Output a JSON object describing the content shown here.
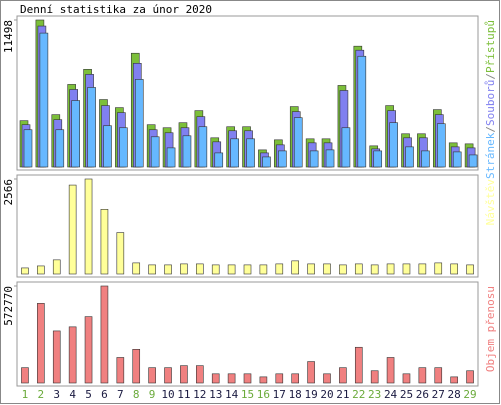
{
  "chart_data": [
    {
      "type": "bar",
      "title": "Denní statistika za únor 2020",
      "legend_separator": "/",
      "ylim": [
        0,
        11498
      ],
      "yticks": [
        11498
      ],
      "series": [
        {
          "name": "Přístupů",
          "color": "#7cbf3a",
          "values": [
            3623,
            11498,
            4095,
            6458,
            7639,
            5276,
            4646,
            8899,
            3308,
            3071,
            3465,
            4410,
            2284,
            3150,
            3150,
            1339,
            2126,
            4725,
            2205,
            2205,
            6379,
            9450,
            1654,
            4804,
            2599,
            2599,
            4489,
            1890,
            1811
          ]
        },
        {
          "name": "Souborů",
          "color": "#8080f0",
          "values": [
            3308,
            11025,
            3701,
            6064,
            7245,
            4804,
            4253,
            8111,
            2914,
            2678,
            3071,
            3938,
            1969,
            2835,
            2835,
            1103,
            1733,
            4331,
            1890,
            1890,
            5985,
            9135,
            1418,
            4410,
            2284,
            2284,
            4095,
            1575,
            1496
          ]
        },
        {
          "name": "Stránek",
          "color": "#66b8ff",
          "values": [
            2914,
            10474,
            2914,
            5198,
            6221,
            3229,
            3071,
            6851,
            2363,
            1496,
            2441,
            3150,
            1103,
            2205,
            2205,
            788,
            1260,
            3859,
            1260,
            1339,
            3071,
            8663,
            1260,
            3465,
            1575,
            1260,
            3386,
            1181,
            945
          ]
        }
      ]
    },
    {
      "type": "bar",
      "ylim": [
        0,
        2566
      ],
      "yticks": [
        2566
      ],
      "series": [
        {
          "name": "Návštěv",
          "color": "#ffff99",
          "values": [
            164,
            218,
            382,
            2402,
            2566,
            1747,
            1119,
            300,
            246,
            246,
            273,
            273,
            246,
            246,
            246,
            246,
            273,
            355,
            273,
            273,
            246,
            273,
            246,
            273,
            273,
            273,
            300,
            273,
            246
          ]
        }
      ]
    },
    {
      "type": "bar",
      "ylim": [
        0,
        572770
      ],
      "yticks": [
        572770
      ],
      "categories": [
        "1",
        "2",
        "3",
        "4",
        "5",
        "6",
        "7",
        "8",
        "9",
        "10",
        "11",
        "12",
        "13",
        "14",
        "15",
        "16",
        "17",
        "18",
        "19",
        "20",
        "21",
        "22",
        "23",
        "24",
        "25",
        "26",
        "27",
        "28",
        "29"
      ],
      "weekend_label_color": "#6aaa3a",
      "label_color": "#1a1a40",
      "weekend": [
        true,
        true,
        false,
        false,
        false,
        false,
        false,
        true,
        true,
        false,
        false,
        false,
        false,
        false,
        true,
        true,
        false,
        false,
        false,
        false,
        false,
        true,
        true,
        false,
        false,
        false,
        false,
        false,
        true
      ],
      "series": [
        {
          "name": "Objem přenosu",
          "color": "#f08080",
          "values": [
            90435,
            470262,
            307479,
            331595,
            391885,
            572770,
            150725,
            198957,
            90435,
            90435,
            102493,
            102493,
            54261,
            54261,
            54261,
            36174,
            54261,
            54261,
            126609,
            54261,
            90435,
            211015,
            72348,
            150725,
            54261,
            90435,
            90435,
            36174,
            72348
          ]
        }
      ]
    }
  ]
}
